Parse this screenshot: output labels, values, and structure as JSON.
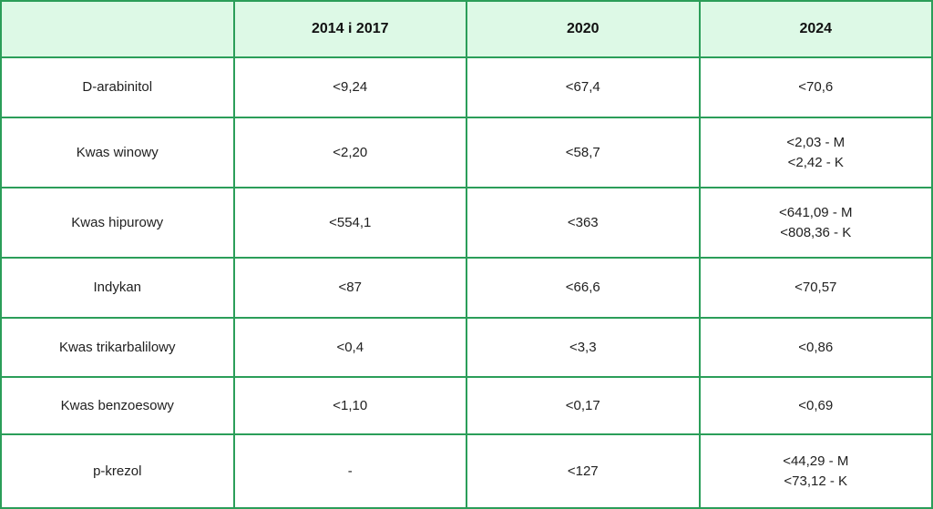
{
  "colors": {
    "border": "#2b9e59",
    "header_bg": "#ddf9e6",
    "text": "#212121",
    "header_text": "#111111"
  },
  "chart_data": {
    "type": "table",
    "title": "",
    "columns": [
      "",
      "2014 i 2017",
      "2020",
      "2024"
    ],
    "rows": [
      [
        "D-arabinitol",
        "<9,24",
        "<67,4",
        "<70,6"
      ],
      [
        "Kwas winowy",
        "<2,20",
        "<58,7",
        "<2,03 - M\n<2,42 - K"
      ],
      [
        "Kwas hipurowy",
        "<554,1",
        "<363",
        "<641,09 - M\n<808,36 - K"
      ],
      [
        "Indykan",
        "<87",
        "<66,6",
        "<70,57"
      ],
      [
        "Kwas trikarbalilowy",
        "<0,4",
        "<3,3",
        "<0,86"
      ],
      [
        "Kwas benzoesowy",
        "<1,10",
        "<0,17",
        "<0,69"
      ],
      [
        "p-krezol",
        "-",
        "<127",
        "<44,29 - M\n<73,12 - K"
      ]
    ]
  }
}
